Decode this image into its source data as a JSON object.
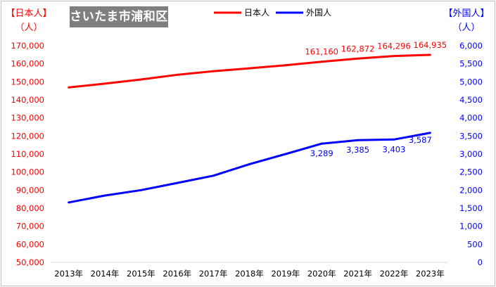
{
  "badge": "さいたま市浦和区",
  "left_axis_title": [
    "【日本人】",
    "（人）"
  ],
  "right_axis_title": [
    "【外国人】",
    "（人）"
  ],
  "colors": {
    "japanese": "#ff0000",
    "foreign": "#0000ff",
    "badge_bg": "#7f7f7f"
  },
  "chart_data": {
    "type": "line",
    "title": "",
    "categories": [
      "2013年",
      "2014年",
      "2015年",
      "2016年",
      "2017年",
      "2018年",
      "2019年",
      "2020年",
      "2021年",
      "2022年",
      "2023年"
    ],
    "series": [
      {
        "name": "日本人",
        "axis": "left",
        "color": "#ff0000",
        "values": [
          146900,
          149000,
          151300,
          153900,
          155900,
          157500,
          159200,
          161160,
          162872,
          164296,
          164935
        ],
        "labels": [
          null,
          null,
          null,
          null,
          null,
          null,
          null,
          "161,160",
          "162,872",
          "164,296",
          "164,935"
        ]
      },
      {
        "name": "外国人",
        "axis": "right",
        "color": "#0000ff",
        "values": [
          1660,
          1850,
          2000,
          2200,
          2400,
          2720,
          3000,
          3289,
          3385,
          3403,
          3587
        ],
        "labels": [
          null,
          null,
          null,
          null,
          null,
          null,
          null,
          "3,289",
          "3,385",
          "3,403",
          "3,587"
        ]
      }
    ],
    "left_axis": {
      "min": 50000,
      "max": 170000,
      "step": 10000,
      "ticks": [
        "50,000",
        "60,000",
        "70,000",
        "80,000",
        "90,000",
        "100,000",
        "110,000",
        "120,000",
        "130,000",
        "140,000",
        "150,000",
        "160,000",
        "170,000"
      ]
    },
    "right_axis": {
      "min": 0,
      "max": 6000,
      "step": 500,
      "ticks": [
        "0",
        "500",
        "1,000",
        "1,500",
        "2,000",
        "2,500",
        "3,000",
        "3,500",
        "4,000",
        "4,500",
        "5,000",
        "5,500",
        "6,000"
      ]
    },
    "legend_position": "top"
  }
}
